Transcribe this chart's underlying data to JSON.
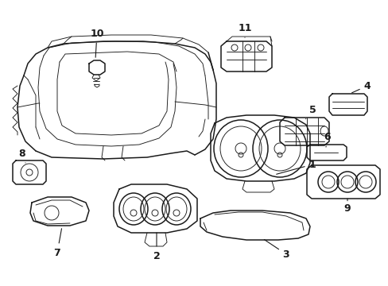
{
  "bg_color": "#ffffff",
  "line_color": "#1a1a1a",
  "lw_main": 1.1,
  "lw_thin": 0.65,
  "figsize": [
    4.89,
    3.6
  ],
  "dpi": 100
}
